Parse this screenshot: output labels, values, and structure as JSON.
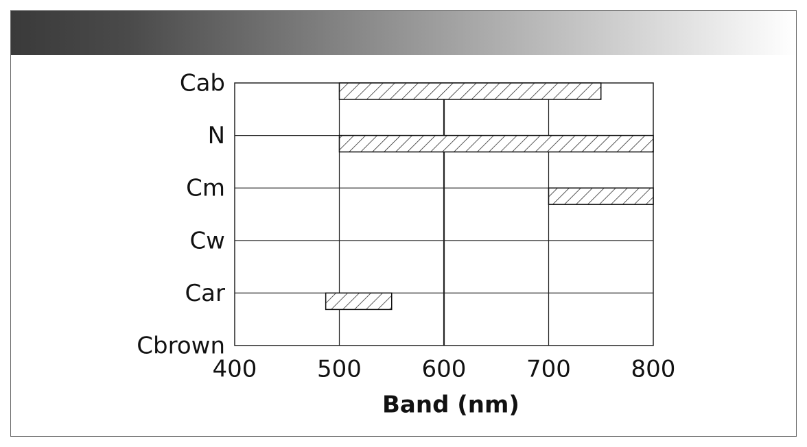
{
  "chart_data": {
    "type": "range_bar",
    "categories": [
      "Cab",
      "N",
      "Cm",
      "Cw",
      "Car",
      "Cbrown"
    ],
    "start": [
      500,
      500,
      700,
      null,
      487,
      null
    ],
    "end": [
      750,
      800,
      800,
      null,
      550,
      null
    ],
    "x_label": "Band (nm)",
    "xlim": [
      400,
      800
    ],
    "xticks": [
      400,
      500,
      600,
      700,
      800
    ],
    "grid": true,
    "color": "#ffffff"
  }
}
